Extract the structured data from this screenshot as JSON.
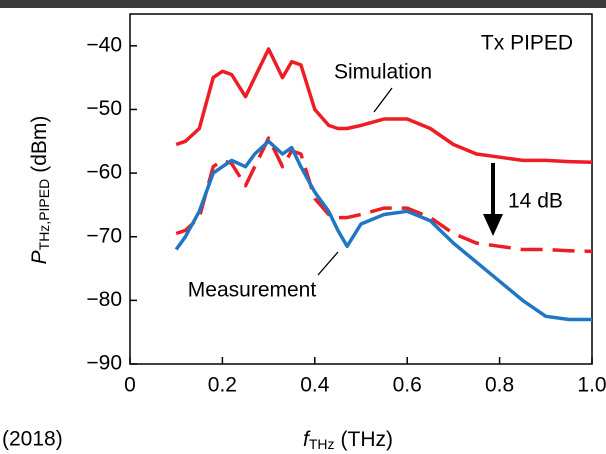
{
  "chart_data": {
    "type": "line",
    "annotations": {
      "panel": "Tx PIPED",
      "offset": "14 dB",
      "simulation": "Simulation",
      "measurement": "Measurement",
      "year": "(2018)"
    },
    "x_label": "f",
    "x_label_sub": "THz",
    "x_label_unit": "(THz)",
    "y_label": "P",
    "y_label_sub": "THz,PIPED",
    "y_label_unit": "(dBm)",
    "x": [
      0.1,
      0.12,
      0.15,
      0.18,
      0.2,
      0.22,
      0.25,
      0.27,
      0.3,
      0.33,
      0.35,
      0.37,
      0.4,
      0.43,
      0.45,
      0.47,
      0.5,
      0.55,
      0.6,
      0.65,
      0.7,
      0.75,
      0.8,
      0.85,
      0.9,
      0.95,
      1.0
    ],
    "series": [
      {
        "color": "#ee1c24",
        "dash": false,
        "values": [
          -55.5,
          -55,
          -53,
          -45,
          -44,
          -44.5,
          -48,
          -45,
          -40.5,
          -45,
          -42.5,
          -43,
          -50,
          -52.5,
          -53,
          -53,
          -52.5,
          -51.5,
          -51.5,
          -53,
          -55.5,
          -57,
          -57.5,
          -58,
          -58,
          -58.2,
          -58.3
        ]
      },
      {
        "color": "#ee1c24",
        "dash": true,
        "values": [
          -69.5,
          -69,
          -67,
          -59,
          -58,
          -58.5,
          -62,
          -59,
          -54.5,
          -59,
          -56.5,
          -57,
          -64,
          -66.5,
          -67,
          -67,
          -66.5,
          -65.5,
          -65.5,
          -67,
          -69.5,
          -71,
          -71.5,
          -72,
          -72,
          -72.2,
          -72.3
        ]
      },
      {
        "color": "#1f77c4",
        "dash": false,
        "values": [
          -72,
          -70,
          -66,
          -60,
          -59,
          -58,
          -59,
          -57,
          -55,
          -57,
          -56,
          -59,
          -63,
          -66,
          -69,
          -71.5,
          -68,
          -66.5,
          -66,
          -67.5,
          -71,
          -74,
          -77,
          -80,
          -82.5,
          -83,
          -83
        ]
      }
    ],
    "xlim": [
      0,
      1
    ],
    "ylim": [
      -90,
      -35
    ],
    "xticks": [
      0,
      0.2,
      0.4,
      0.6,
      0.8,
      {
        "value": 1,
        "label": "1.0"
      }
    ],
    "yticks": [
      {
        "value": -40,
        "label": "−40"
      },
      {
        "value": -50,
        "label": "−50"
      },
      {
        "value": -60,
        "label": "−60"
      },
      {
        "value": -70,
        "label": "−70"
      },
      {
        "value": -80,
        "label": "−80"
      },
      {
        "value": -90,
        "label": "−90"
      }
    ]
  }
}
